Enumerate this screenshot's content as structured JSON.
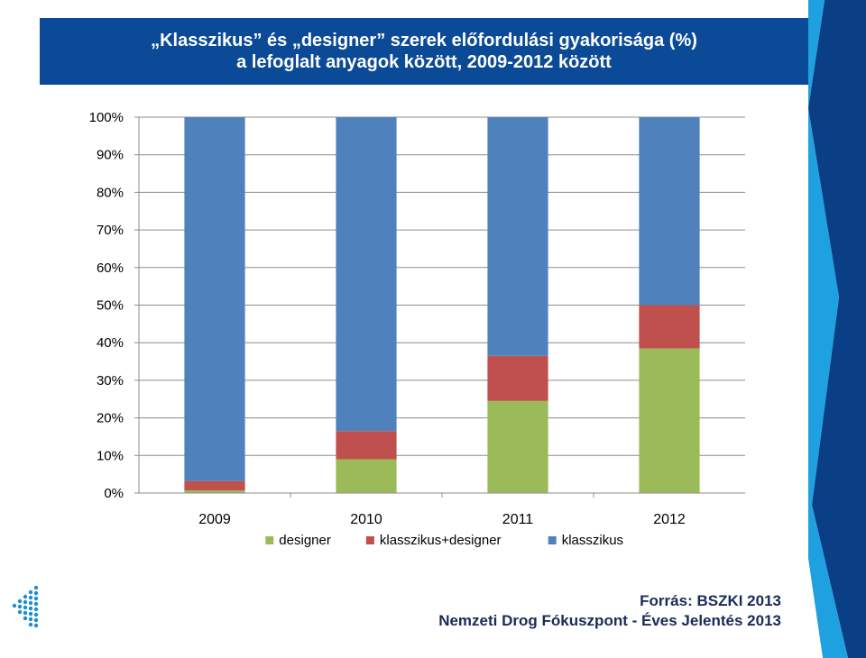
{
  "slide": {
    "title_line1": "„Klasszikus” és „designer” szerek előfordulási gyakorisága (%)",
    "title_line2": "a lefoglalt anyagok között, 2009-2012 között",
    "source_line1": "Forrás: BSZKI 2013",
    "source_line2": "Nemzeti Drog Fókuszpont - Éves Jelentés 2013",
    "colors": {
      "title_bg": "#0b4a96",
      "stripe_dark": "#0a3f86",
      "stripe_light": "#1fa0e0"
    }
  },
  "chart_data": {
    "type": "bar",
    "stacked": true,
    "categories": [
      "2009",
      "2010",
      "2011",
      "2012"
    ],
    "yticks": [
      "0%",
      "10%",
      "20%",
      "30%",
      "40%",
      "50%",
      "60%",
      "70%",
      "80%",
      "90%",
      "100%"
    ],
    "ylim": [
      0,
      100
    ],
    "grid": true,
    "legend_position": "bottom",
    "series": [
      {
        "name": "designer",
        "color": "#9bbb59",
        "values": [
          0.7,
          9,
          24.5,
          38.5
        ]
      },
      {
        "name": "klasszikus+designer",
        "color": "#c0504d",
        "values": [
          2.5,
          7.5,
          12,
          11.5
        ]
      },
      {
        "name": "klasszikus",
        "color": "#4f81bd",
        "values": [
          96.8,
          83.5,
          63.5,
          50
        ]
      }
    ]
  }
}
